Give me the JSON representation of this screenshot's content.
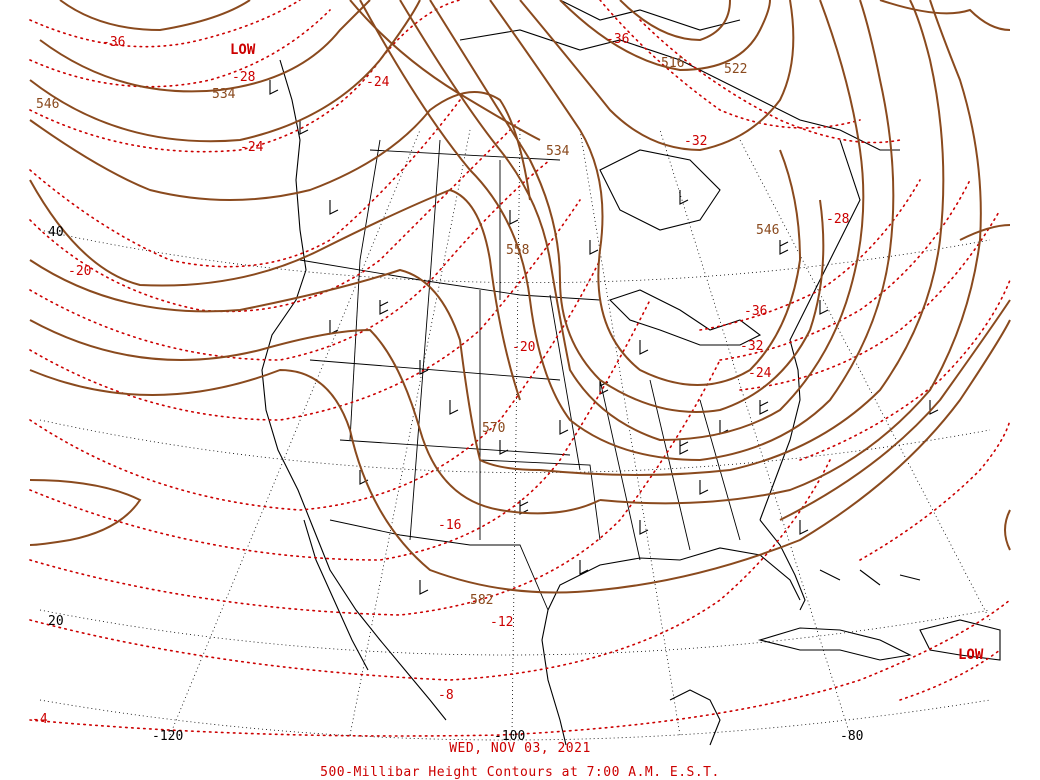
{
  "colors": {
    "height_contour": "#8a4a1e",
    "temperature_contour": "#cc0000",
    "coastline": "#000000",
    "wind_barb": "#000000",
    "graticule": "#000000"
  },
  "caption": {
    "date": "WED, NOV 03, 2021",
    "title": "500-Millibar Height Contours at 7:00 A.M. E.S.T."
  },
  "height_labels": [
    "534",
    "546",
    "558",
    "570",
    "582",
    "516",
    "522",
    "546",
    "534"
  ],
  "temperature_labels": [
    "-36",
    "-28",
    "-24",
    "-24",
    "-20",
    "-20",
    "-16",
    "-12",
    "-8",
    "-4",
    "-36",
    "-32",
    "-36",
    "-32",
    "-28",
    "-24"
  ],
  "low_labels": [
    "LOW",
    "LOW"
  ],
  "latitude_labels": [
    "40",
    "20"
  ],
  "longitude_labels": [
    "-120",
    "-100",
    "-80"
  ]
}
